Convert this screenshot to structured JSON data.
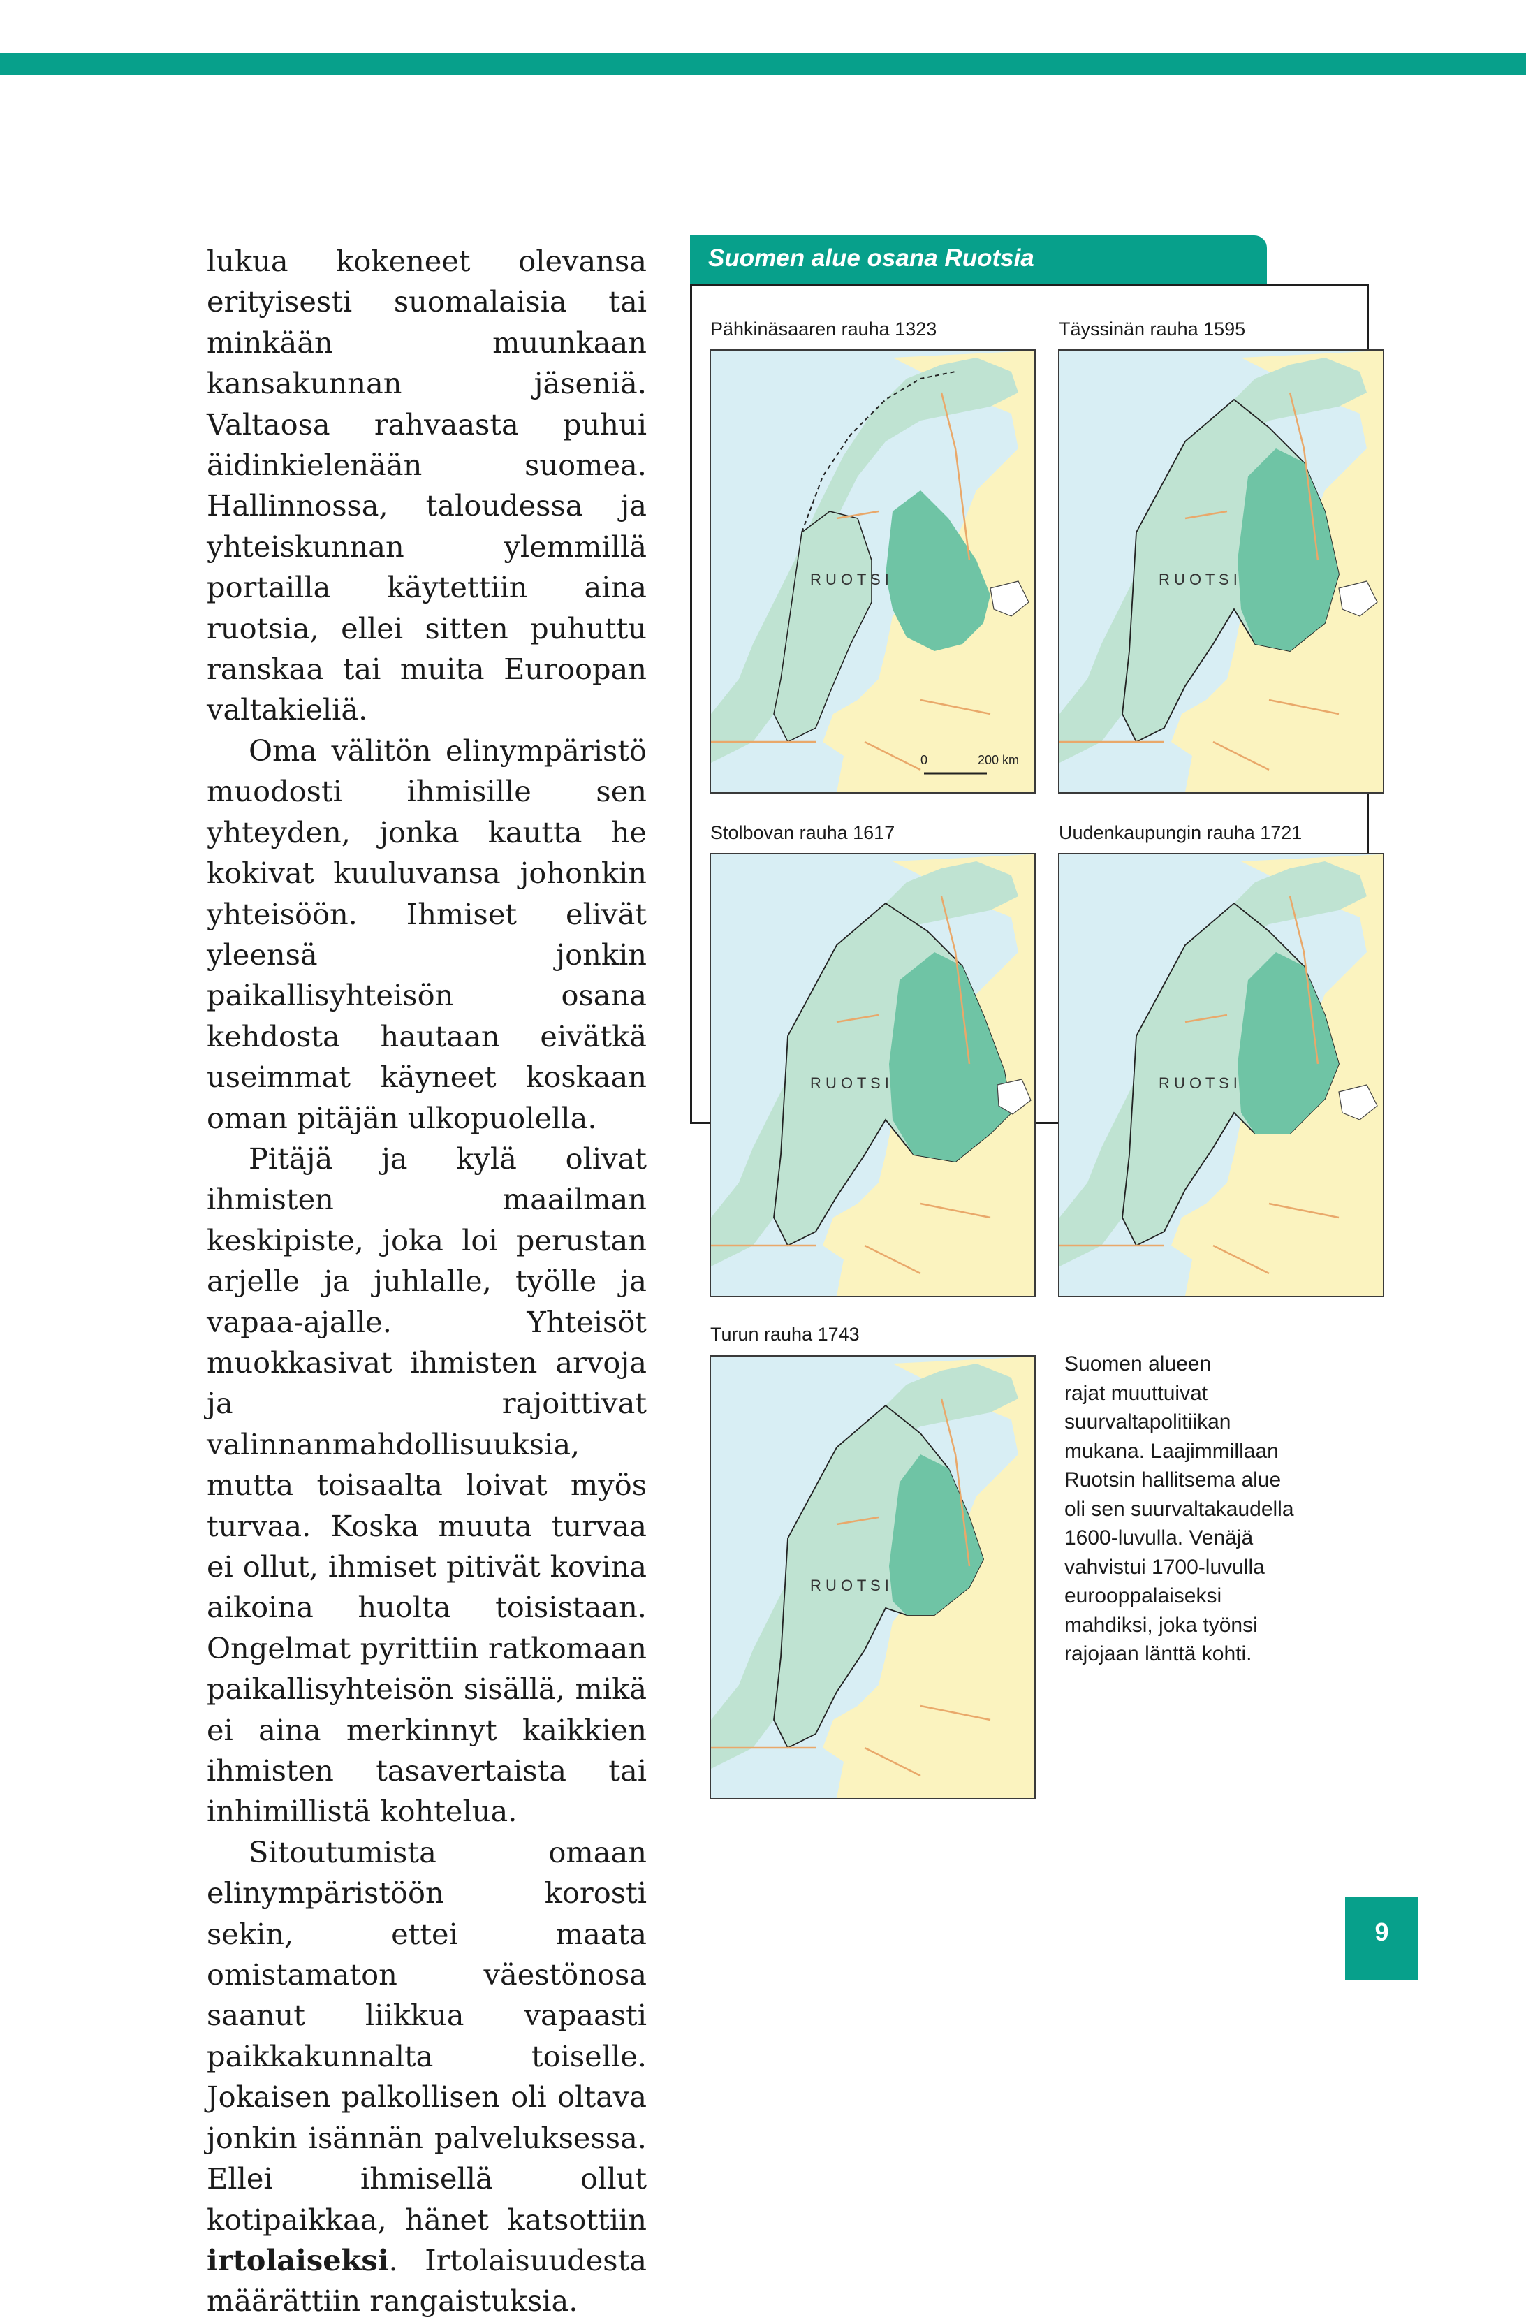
{
  "box": {
    "title": "Suomen alue osana Ruotsia",
    "region_label": "R U O T S I",
    "scale": {
      "zero": "0",
      "distance": "200 km"
    },
    "maps": [
      {
        "caption": "Pähkinäsaaren rauha 1323"
      },
      {
        "caption": "Täyssinän rauha 1595"
      },
      {
        "caption": "Stolbovan rauha 1617"
      },
      {
        "caption": "Uudenkaupungin rauha 1721"
      },
      {
        "caption": "Turun rauha 1743"
      }
    ],
    "note": "Suomen alueen\nrajat muuttuivat\nsuurvaltapolitiikan\nmukana. Laajimmillaan\nRuotsin hallitsema alue\noli sen suurvaltakaudella\n1600-luvulla. Venäjä\nvahvistui 1700-luvulla\neurooppalaiseksi\nmahdiksi, joka työnsi\nrajojaan länttä kohti."
  },
  "colors": {
    "accent": "#07a08b",
    "sea": "#d8eef4",
    "land": "#fbf3bf",
    "sweden": "#bfe3d2",
    "finland": "#6fc4a5",
    "border": "#e9a86a"
  },
  "text": {
    "p1": "lukua kokeneet olevansa erityisesti suomalaisia tai minkään muunkaan kansakunnan jäseniä. Valtaosa rahvaasta puhui äidinkielenään suomea. Hallinnossa, taloudessa ja yhteiskunnan ylemmillä portailla käytettiin aina ruotsia, ellei sitten puhuttu ranskaa tai muita Euroopan valtakieliä.",
    "p2": "Oma välitön elinympäristö muodosti ihmisille sen yhteyden, jonka kautta he kokivat kuuluvansa johonkin yhteisöön. Ihmiset elivät yleensä jonkin paikallisyhteisön osana kehdosta hautaan eivätkä useimmat käyneet koskaan oman pitäjän ulkopuolella.",
    "p3": "Pitäjä ja kylä olivat ihmisten maailman keskipiste, joka loi perustan arjelle ja juhlalle, työlle ja vapaa-ajalle. Yhteisöt muokkasivat ihmisten arvoja ja rajoittivat valinnanmahdollisuuksia, mutta toisaalta loivat myös turvaa. Koska muuta turvaa ei ollut, ihmiset pitivät kovina aikoina huolta toisistaan. Ongelmat pyrittiin ratkomaan paikallisyhteisön sisällä, mikä ei aina merkinnyt kaikkien ihmisten tasavertaista tai inhimillistä kohtelua.",
    "p4_start": "Sitoutumista omaan elinympäristöön korosti sekin, ettei maata omistamaton väestönosa saanut liikkua vapaasti paikkakunnalta toiselle. Jokaisen palkollisen oli oltava jonkin isännän palveluksessa. Ellei ihmisellä ollut kotipaikkaa, hänet katsottiin ",
    "p4_term": "irtolaiseksi",
    "p4_end": ". Irtolaisuudesta määrättiin rangaistuksia."
  },
  "page_number": "9"
}
